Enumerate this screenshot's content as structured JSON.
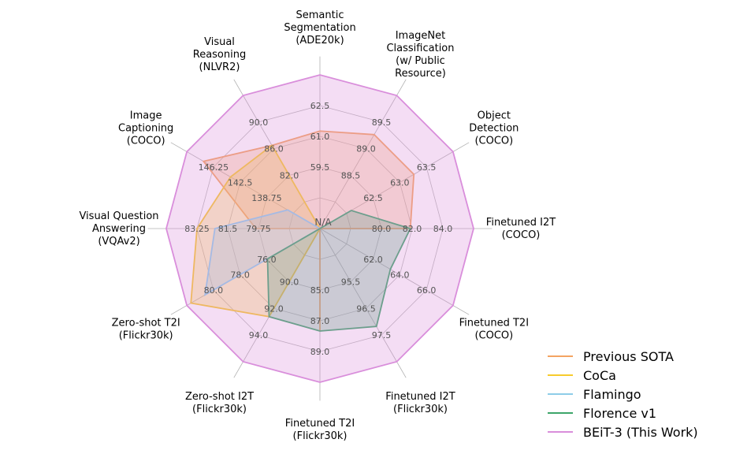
{
  "chart_data": {
    "type": "radar",
    "center_label": "N/A",
    "axes": [
      {
        "name": "Finetuned I2T",
        "lines": [
          "Finetuned I2T",
          "(COCO)"
        ],
        "ticks": [
          "80.0",
          "82.0",
          "84.0"
        ]
      },
      {
        "name": "Object Detection",
        "lines": [
          "Object",
          "Detection",
          "(COCO)"
        ],
        "ticks": [
          "62.5",
          "63.0",
          "63.5"
        ]
      },
      {
        "name": "ImageNet Classification",
        "lines": [
          "ImageNet",
          "Classification",
          "(w/ Public",
          "Resource)"
        ],
        "ticks": [
          "88.5",
          "89.0",
          "89.5"
        ]
      },
      {
        "name": "Semantic Segmentation",
        "lines": [
          "Semantic",
          "Segmentation",
          "(ADE20k)"
        ],
        "ticks": [
          "59.5",
          "61.0",
          "62.5"
        ]
      },
      {
        "name": "Visual Reasoning",
        "lines": [
          "Visual",
          "Reasoning",
          "(NLVR2)"
        ],
        "ticks": [
          "82.0",
          "86.0",
          "90.0"
        ]
      },
      {
        "name": "Image Captioning",
        "lines": [
          "Image",
          "Captioning",
          "(COCO)"
        ],
        "ticks": [
          "138.75",
          "142.5",
          "146.25"
        ]
      },
      {
        "name": "Visual Question Answering",
        "lines": [
          "Visual Question",
          "Answering",
          "(VQAv2)"
        ],
        "ticks": [
          "79.75",
          "81.5",
          "83.25"
        ]
      },
      {
        "name": "Zero-shot T2I",
        "lines": [
          "Zero-shot T2I",
          "(Flickr30k)"
        ],
        "ticks": [
          "76.0",
          "78.0",
          "80.0"
        ]
      },
      {
        "name": "Zero-shot I2T",
        "lines": [
          "Zero-shot I2T",
          "(Flickr30k)"
        ],
        "ticks": [
          "90.0",
          "92.0",
          "94.0"
        ]
      },
      {
        "name": "Finetuned T2I",
        "lines": [
          "Finetuned T2I",
          "(Flickr30k)"
        ],
        "ticks": [
          "85.0",
          "87.0",
          "89.0"
        ]
      },
      {
        "name": "Finetuned I2T",
        "lines": [
          "Finetuned I2T",
          "(Flickr30k)"
        ],
        "ticks": [
          "95.5",
          "96.5",
          "97.5"
        ]
      },
      {
        "name": "Finetuned T2I",
        "lines": [
          "Finetuned T2I",
          "(COCO)"
        ],
        "ticks": [
          "62.0",
          "64.0",
          "66.0"
        ]
      }
    ],
    "ranges": [
      [
        78,
        84.8
      ],
      [
        62,
        63.7
      ],
      [
        88,
        89.7
      ],
      [
        58,
        63.2
      ],
      [
        78,
        91.6
      ],
      [
        135,
        147.8
      ],
      [
        78,
        84
      ],
      [
        74,
        80.6
      ],
      [
        88,
        94.8
      ],
      [
        83,
        89.6
      ],
      [
        94.5,
        97.9
      ],
      [
        60,
        66.8
      ]
    ],
    "series": [
      {
        "name": "Previous SOTA",
        "color": "#F4A462",
        "values": [
          82.0,
          63.2,
          89.2,
          61.3,
          86.5,
          146.2,
          80.5,
          74.0,
          88.0,
          87.4,
          94.5,
          60.0
        ]
      },
      {
        "name": "CoCa",
        "color": "#F7CB2D",
        "values": [
          78.0,
          62.0,
          88.0,
          58.0,
          86.5,
          143.6,
          82.8,
          80.4,
          92.5,
          83.0,
          94.5,
          60.0
        ]
      },
      {
        "name": "Flamingo",
        "color": "#8ECDE8",
        "values": [
          78.0,
          62.0,
          88.0,
          58.0,
          78.0,
          138.1,
          82.1,
          79.7,
          88.0,
          83.0,
          94.5,
          60.0
        ]
      },
      {
        "name": "Florence v1",
        "color": "#3DA56A",
        "values": [
          82.0,
          62.4,
          88.0,
          58.0,
          78.0,
          135.0,
          78.0,
          76.6,
          92.5,
          87.4,
          97.0,
          63.6
        ]
      },
      {
        "name": "BEiT-3 (This Work)",
        "color": "#D98EDB",
        "values": [
          84.8,
          63.7,
          89.7,
          63.2,
          91.6,
          147.8,
          84.0,
          80.6,
          94.8,
          89.6,
          97.9,
          66.8
        ]
      }
    ],
    "grid": true,
    "legend": "bottom-right"
  }
}
